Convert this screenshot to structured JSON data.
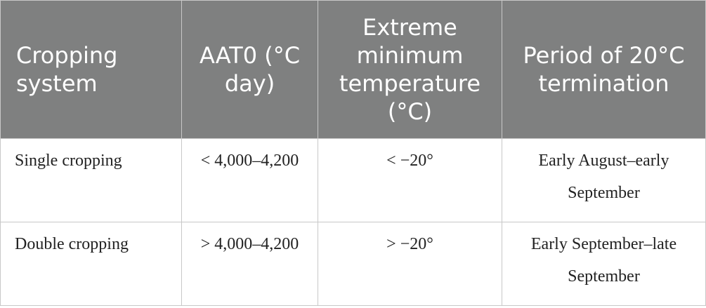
{
  "table": {
    "headers": [
      "Cropping system",
      "AAT0 (°C day)",
      "Extreme minimum temperature (°C)",
      "Period of 20°C termination"
    ],
    "rows": [
      [
        "Single cropping",
        "< 4,000–4,200",
        "< −20°",
        "Early August–early September"
      ],
      [
        "Double cropping",
        "> 4,000–4,200",
        "> −20°",
        "Early September–late September"
      ]
    ]
  }
}
